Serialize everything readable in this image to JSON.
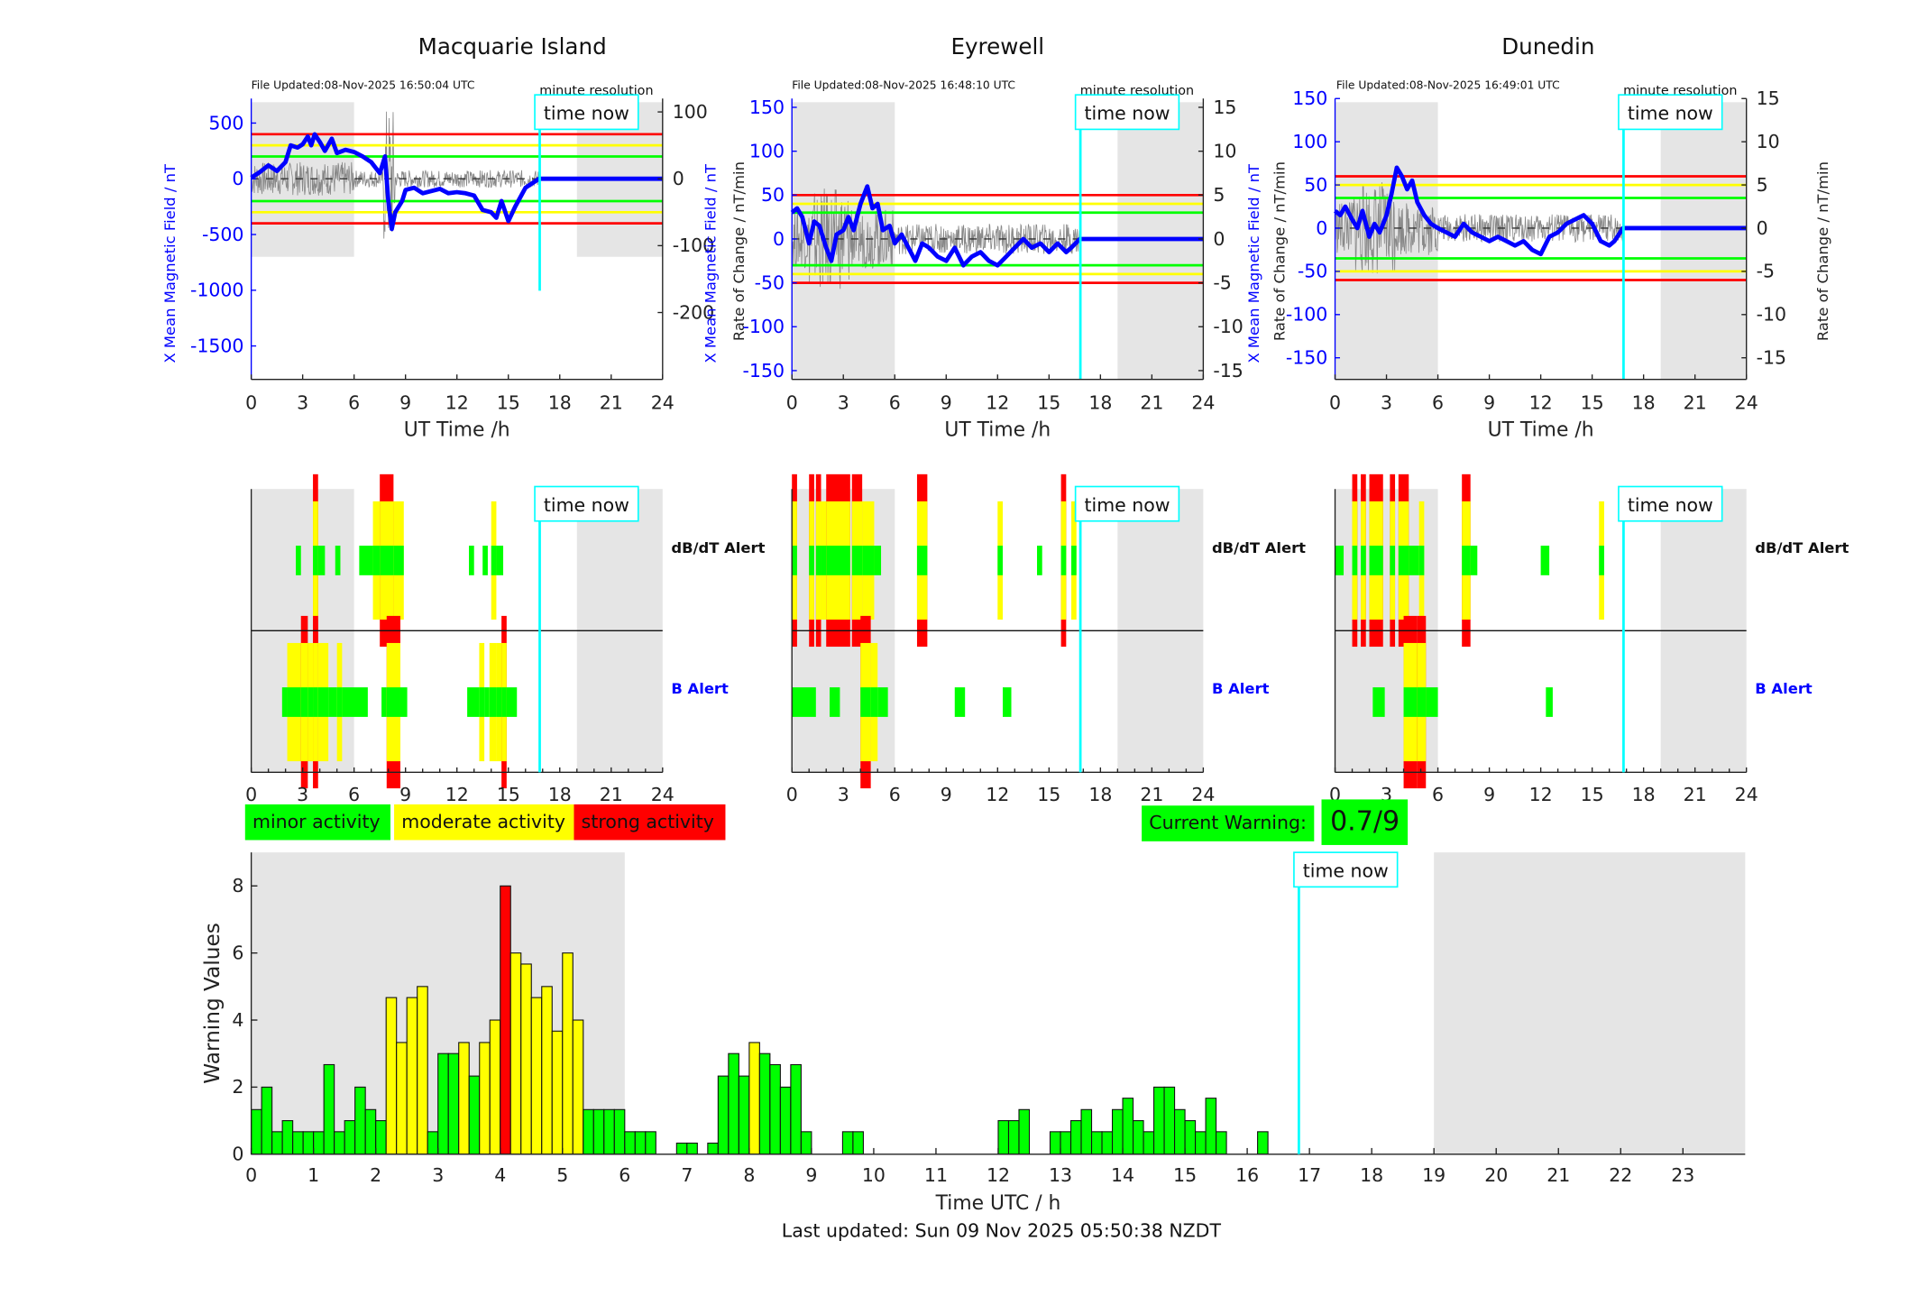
{
  "stations": [
    {
      "name": "Macquarie Island",
      "file_updated": "File Updated:08-Nov-2025 16:50:04 UTC",
      "resolution": "minute resolution",
      "time_now_label": "time now",
      "left_ylabel": "X Mean Magnetic Field / nT",
      "right_ylabel": "Rate of Change / nT/min",
      "xlabel": "UT Time /h",
      "left_ylim": [
        -1800,
        720
      ],
      "left_yticks": [
        500,
        0,
        -500,
        -1000,
        -1500
      ],
      "right_ylim": [
        -300,
        120
      ],
      "right_yticks": [
        100,
        0,
        -100,
        -200
      ],
      "thresholds_nT": {
        "green": 200,
        "yellow": 300,
        "red": 400
      },
      "night_shading_h": [
        [
          0,
          6
        ],
        [
          19,
          24
        ]
      ],
      "time_now_h": 16.83,
      "field_trace": [
        [
          0,
          10
        ],
        [
          0.5,
          60
        ],
        [
          1,
          120
        ],
        [
          1.5,
          70
        ],
        [
          2,
          150
        ],
        [
          2.3,
          300
        ],
        [
          2.7,
          280
        ],
        [
          3,
          310
        ],
        [
          3.3,
          380
        ],
        [
          3.5,
          300
        ],
        [
          3.7,
          400
        ],
        [
          4,
          330
        ],
        [
          4.3,
          250
        ],
        [
          4.7,
          360
        ],
        [
          5,
          230
        ],
        [
          5.5,
          260
        ],
        [
          6,
          240
        ],
        [
          6.5,
          200
        ],
        [
          7,
          150
        ],
        [
          7.5,
          50
        ],
        [
          7.8,
          200
        ],
        [
          8,
          -200
        ],
        [
          8.2,
          -450
        ],
        [
          8.4,
          -300
        ],
        [
          8.8,
          -200
        ],
        [
          9,
          -100
        ],
        [
          9.5,
          -80
        ],
        [
          10,
          -130
        ],
        [
          11,
          -90
        ],
        [
          11.5,
          -130
        ],
        [
          12,
          -120
        ],
        [
          12.5,
          -130
        ],
        [
          13,
          -150
        ],
        [
          13.5,
          -280
        ],
        [
          14,
          -300
        ],
        [
          14.3,
          -350
        ],
        [
          14.6,
          -200
        ],
        [
          15,
          -380
        ],
        [
          15.4,
          -250
        ],
        [
          16,
          -80
        ],
        [
          16.8,
          0
        ],
        [
          24,
          0
        ]
      ],
      "dbdt_alerts": [
        {
          "start": 2.6,
          "end": 2.9,
          "level": 1
        },
        {
          "start": 3.6,
          "end": 3.9,
          "level": 3
        },
        {
          "start": 3.9,
          "end": 4.3,
          "level": 1
        },
        {
          "start": 4.9,
          "end": 5.2,
          "level": 1
        },
        {
          "start": 6.3,
          "end": 7.1,
          "level": 1
        },
        {
          "start": 7.1,
          "end": 7.5,
          "level": 2
        },
        {
          "start": 7.5,
          "end": 8.3,
          "level": 3
        },
        {
          "start": 8.3,
          "end": 8.9,
          "level": 2
        },
        {
          "start": 12.7,
          "end": 13.0,
          "level": 1
        },
        {
          "start": 13.5,
          "end": 13.8,
          "level": 1
        },
        {
          "start": 14.0,
          "end": 14.3,
          "level": 2
        },
        {
          "start": 14.3,
          "end": 14.7,
          "level": 1
        }
      ],
      "b_alerts": [
        {
          "start": 1.8,
          "end": 2.1,
          "level": 1
        },
        {
          "start": 2.1,
          "end": 2.9,
          "level": 2
        },
        {
          "start": 2.9,
          "end": 3.3,
          "level": 3
        },
        {
          "start": 3.3,
          "end": 3.6,
          "level": 2
        },
        {
          "start": 3.6,
          "end": 3.9,
          "level": 3
        },
        {
          "start": 3.9,
          "end": 4.5,
          "level": 2
        },
        {
          "start": 4.5,
          "end": 5.0,
          "level": 1
        },
        {
          "start": 5.0,
          "end": 5.3,
          "level": 2
        },
        {
          "start": 5.3,
          "end": 6.8,
          "level": 1
        },
        {
          "start": 7.6,
          "end": 7.9,
          "level": 1
        },
        {
          "start": 7.9,
          "end": 8.7,
          "level": 3
        },
        {
          "start": 8.7,
          "end": 9.1,
          "level": 1
        },
        {
          "start": 12.6,
          "end": 13.3,
          "level": 1
        },
        {
          "start": 13.3,
          "end": 13.6,
          "level": 2
        },
        {
          "start": 13.6,
          "end": 13.9,
          "level": 1
        },
        {
          "start": 13.9,
          "end": 14.3,
          "level": 2
        },
        {
          "start": 14.3,
          "end": 14.6,
          "level": 2
        },
        {
          "start": 14.6,
          "end": 14.9,
          "level": 3
        },
        {
          "start": 14.9,
          "end": 15.5,
          "level": 1
        }
      ]
    },
    {
      "name": "Eyrewell",
      "file_updated": "File Updated:08-Nov-2025 16:48:10 UTC",
      "resolution": "minute resolution",
      "time_now_label": "time now",
      "left_ylabel": "X Mean Magnetic Field / nT",
      "right_ylabel": "Rate of Change / nT/min",
      "xlabel": "UT Time /h",
      "left_ylim": [
        -160,
        160
      ],
      "left_yticks": [
        150,
        100,
        50,
        0,
        -50,
        -100,
        -150
      ],
      "right_ylim": [
        -16,
        16
      ],
      "right_yticks": [
        15,
        10,
        5,
        0,
        -5,
        -10,
        -15
      ],
      "thresholds_nT": {
        "green": 30,
        "yellow": 40,
        "red": 50
      },
      "night_shading_h": [
        [
          0,
          6
        ],
        [
          19,
          24
        ]
      ],
      "time_now_h": 16.83,
      "field_trace": [
        [
          0,
          30
        ],
        [
          0.3,
          35
        ],
        [
          0.6,
          25
        ],
        [
          1,
          -5
        ],
        [
          1.3,
          20
        ],
        [
          1.6,
          15
        ],
        [
          2,
          -10
        ],
        [
          2.3,
          -25
        ],
        [
          2.6,
          5
        ],
        [
          3,
          10
        ],
        [
          3.3,
          25
        ],
        [
          3.6,
          10
        ],
        [
          4,
          40
        ],
        [
          4.4,
          60
        ],
        [
          4.7,
          35
        ],
        [
          5,
          40
        ],
        [
          5.3,
          10
        ],
        [
          5.7,
          15
        ],
        [
          6,
          -5
        ],
        [
          6.4,
          5
        ],
        [
          6.8,
          -10
        ],
        [
          7.2,
          -25
        ],
        [
          7.6,
          -5
        ],
        [
          8,
          -10
        ],
        [
          8.5,
          -20
        ],
        [
          9,
          -25
        ],
        [
          9.5,
          -10
        ],
        [
          10,
          -30
        ],
        [
          10.5,
          -20
        ],
        [
          11,
          -15
        ],
        [
          11.5,
          -25
        ],
        [
          12,
          -30
        ],
        [
          12.5,
          -20
        ],
        [
          13,
          -10
        ],
        [
          13.5,
          0
        ],
        [
          14,
          -10
        ],
        [
          14.5,
          -5
        ],
        [
          15,
          -15
        ],
        [
          15.5,
          -5
        ],
        [
          16,
          -15
        ],
        [
          16.3,
          -10
        ],
        [
          16.8,
          0
        ],
        [
          24,
          0
        ]
      ],
      "dbdt_alerts": [
        {
          "start": 0.0,
          "end": 0.3,
          "level": 3
        },
        {
          "start": 1.0,
          "end": 1.3,
          "level": 3
        },
        {
          "start": 1.4,
          "end": 1.7,
          "level": 3
        },
        {
          "start": 1.7,
          "end": 2.0,
          "level": 2
        },
        {
          "start": 2.0,
          "end": 3.4,
          "level": 3
        },
        {
          "start": 3.5,
          "end": 4.1,
          "level": 3
        },
        {
          "start": 4.1,
          "end": 4.8,
          "level": 2
        },
        {
          "start": 4.8,
          "end": 5.2,
          "level": 1
        },
        {
          "start": 7.3,
          "end": 7.9,
          "level": 3
        },
        {
          "start": 12.0,
          "end": 12.3,
          "level": 2
        },
        {
          "start": 14.3,
          "end": 14.6,
          "level": 1
        },
        {
          "start": 15.7,
          "end": 16.0,
          "level": 3
        },
        {
          "start": 16.3,
          "end": 16.6,
          "level": 2
        }
      ],
      "b_alerts": [
        {
          "start": 0.0,
          "end": 1.4,
          "level": 1
        },
        {
          "start": 2.2,
          "end": 2.8,
          "level": 1
        },
        {
          "start": 4.0,
          "end": 4.6,
          "level": 3
        },
        {
          "start": 4.6,
          "end": 5.0,
          "level": 2
        },
        {
          "start": 5.0,
          "end": 5.6,
          "level": 1
        },
        {
          "start": 9.5,
          "end": 10.1,
          "level": 1
        },
        {
          "start": 12.3,
          "end": 12.8,
          "level": 1
        }
      ]
    },
    {
      "name": "Dunedin",
      "file_updated": "File Updated:08-Nov-2025 16:49:01 UTC",
      "resolution": "minute resolution",
      "time_now_label": "time now",
      "left_ylabel": "X Mean Magnetic Field / nT",
      "right_ylabel": "Rate of Change / nT/min",
      "xlabel": "UT Time /h",
      "left_ylim": [
        -175,
        150
      ],
      "left_yticks": [
        150,
        100,
        50,
        0,
        -50,
        -100,
        -150
      ],
      "right_ylim": [
        -17.5,
        15
      ],
      "right_yticks": [
        15,
        10,
        5,
        0,
        -5,
        -10,
        -15
      ],
      "thresholds_nT": {
        "green": 35,
        "yellow": 50,
        "red": 60
      },
      "night_shading_h": [
        [
          0,
          6
        ],
        [
          19,
          24
        ]
      ],
      "time_now_h": 16.83,
      "field_trace": [
        [
          0,
          20
        ],
        [
          0.3,
          15
        ],
        [
          0.6,
          25
        ],
        [
          1,
          10
        ],
        [
          1.3,
          0
        ],
        [
          1.6,
          20
        ],
        [
          2,
          -10
        ],
        [
          2.3,
          5
        ],
        [
          2.6,
          -5
        ],
        [
          3,
          15
        ],
        [
          3.3,
          40
        ],
        [
          3.6,
          70
        ],
        [
          3.9,
          60
        ],
        [
          4.2,
          45
        ],
        [
          4.5,
          55
        ],
        [
          4.8,
          30
        ],
        [
          5.2,
          15
        ],
        [
          5.6,
          5
        ],
        [
          6,
          0
        ],
        [
          6.5,
          -5
        ],
        [
          7,
          -10
        ],
        [
          7.5,
          5
        ],
        [
          8,
          -5
        ],
        [
          8.5,
          -10
        ],
        [
          9,
          -15
        ],
        [
          9.5,
          -10
        ],
        [
          10,
          -15
        ],
        [
          10.5,
          -20
        ],
        [
          11,
          -15
        ],
        [
          11.5,
          -25
        ],
        [
          12,
          -30
        ],
        [
          12.5,
          -10
        ],
        [
          13,
          -5
        ],
        [
          13.5,
          5
        ],
        [
          14,
          10
        ],
        [
          14.5,
          15
        ],
        [
          15,
          5
        ],
        [
          15.5,
          -15
        ],
        [
          16,
          -20
        ],
        [
          16.3,
          -15
        ],
        [
          16.8,
          0
        ],
        [
          24,
          0
        ]
      ],
      "dbdt_alerts": [
        {
          "start": 0.0,
          "end": 0.5,
          "level": 1
        },
        {
          "start": 1.0,
          "end": 1.3,
          "level": 3
        },
        {
          "start": 1.5,
          "end": 1.8,
          "level": 3
        },
        {
          "start": 2.0,
          "end": 2.8,
          "level": 3
        },
        {
          "start": 3.2,
          "end": 3.5,
          "level": 3
        },
        {
          "start": 3.7,
          "end": 4.3,
          "level": 3
        },
        {
          "start": 4.3,
          "end": 4.9,
          "level": 1
        },
        {
          "start": 4.9,
          "end": 5.2,
          "level": 2
        },
        {
          "start": 7.4,
          "end": 7.9,
          "level": 3
        },
        {
          "start": 7.9,
          "end": 8.3,
          "level": 1
        },
        {
          "start": 12.0,
          "end": 12.5,
          "level": 1
        },
        {
          "start": 15.4,
          "end": 15.7,
          "level": 2
        }
      ],
      "b_alerts": [
        {
          "start": 2.2,
          "end": 2.9,
          "level": 1
        },
        {
          "start": 4.0,
          "end": 4.8,
          "level": 3
        },
        {
          "start": 4.8,
          "end": 5.3,
          "level": 3
        },
        {
          "start": 5.3,
          "end": 6.0,
          "level": 1
        },
        {
          "start": 12.3,
          "end": 12.7,
          "level": 1
        }
      ]
    }
  ],
  "alert_labels": {
    "dbdt": "dB/dT Alert",
    "b": "B Alert"
  },
  "legend": {
    "minor": "minor activity",
    "moderate": "moderate activity",
    "strong": "strong activity"
  },
  "colors": {
    "minor": "#00ff00",
    "moderate": "#ffff00",
    "strong": "#ff0000",
    "time_now": "#00ffff",
    "field": "#0000ff",
    "night": "#e5e5e5"
  },
  "current_warning": {
    "label": "Current Warning:",
    "value": "0.7/9"
  },
  "footer": "Last updated: Sun 09 Nov 2025 05:50:38 NZDT",
  "chart_data": {
    "type": "bar",
    "title": "",
    "xlabel": "Time UTC / h",
    "ylabel": "Warning Values",
    "xlim": [
      0,
      24
    ],
    "ylim": [
      0,
      9
    ],
    "yticks": [
      0,
      2,
      4,
      6,
      8
    ],
    "xticks": [
      0,
      1,
      2,
      3,
      4,
      5,
      6,
      7,
      8,
      9,
      10,
      11,
      12,
      13,
      14,
      15,
      16,
      17,
      18,
      19,
      20,
      21,
      22,
      23
    ],
    "bin_width_h": 0.1667,
    "time_now_h": 16.83,
    "time_now_label": "time now",
    "night_shading_h": [
      [
        0,
        6
      ],
      [
        19,
        24
      ]
    ],
    "color_thresholds": {
      "minor_below": 3.33,
      "strong_from": 7
    },
    "values": [
      1.33,
      2.0,
      0.67,
      1.0,
      0.67,
      0.67,
      0.67,
      2.67,
      0.67,
      1.0,
      2.0,
      1.33,
      1.0,
      4.67,
      3.33,
      4.67,
      5.0,
      0.67,
      3.0,
      3.0,
      3.33,
      2.33,
      3.33,
      4.0,
      8.0,
      6.0,
      5.67,
      4.67,
      5.0,
      3.67,
      6.0,
      4.0,
      1.33,
      1.33,
      1.33,
      1.33,
      0.67,
      0.67,
      0.67,
      0,
      0,
      0.33,
      0.33,
      0,
      0.33,
      2.33,
      3.0,
      2.33,
      3.33,
      3.0,
      2.67,
      2.0,
      2.67,
      0.67,
      0,
      0,
      0,
      0.67,
      0.67,
      0,
      0,
      0,
      0,
      0,
      0,
      0,
      0,
      0,
      0,
      0,
      0,
      0,
      1.0,
      1.0,
      1.33,
      0,
      0,
      0.67,
      0.67,
      1.0,
      1.33,
      0.67,
      0.67,
      1.33,
      1.67,
      1.0,
      0.67,
      2.0,
      2.0,
      1.33,
      1.0,
      0.67,
      1.67,
      0.67,
      0,
      0,
      0,
      0.67,
      0,
      0,
      0,
      0,
      0,
      0,
      0,
      0,
      0,
      0,
      0,
      0,
      0,
      0,
      0,
      0,
      0,
      0,
      0,
      0,
      0,
      0,
      0,
      0,
      0,
      0,
      0,
      0,
      0,
      0,
      0,
      0,
      0,
      0,
      0,
      0,
      0,
      0,
      0,
      0,
      0,
      0,
      0,
      0,
      0,
      0
    ],
    "value_colors_note": "yellow bars at 2.17,2.33,2.5,2.67,3.33,3.67,3.83,4.17-5.17,8.0; red at 4.0; else green",
    "categories_colors": {
      "13": "moderate",
      "14": "moderate",
      "15": "moderate",
      "16": "moderate",
      "20": "moderate",
      "22": "moderate",
      "23": "moderate",
      "24": "strong",
      "25": "moderate",
      "26": "moderate",
      "27": "moderate",
      "28": "moderate",
      "29": "moderate",
      "30": "moderate",
      "31": "moderate",
      "48": "moderate"
    }
  }
}
